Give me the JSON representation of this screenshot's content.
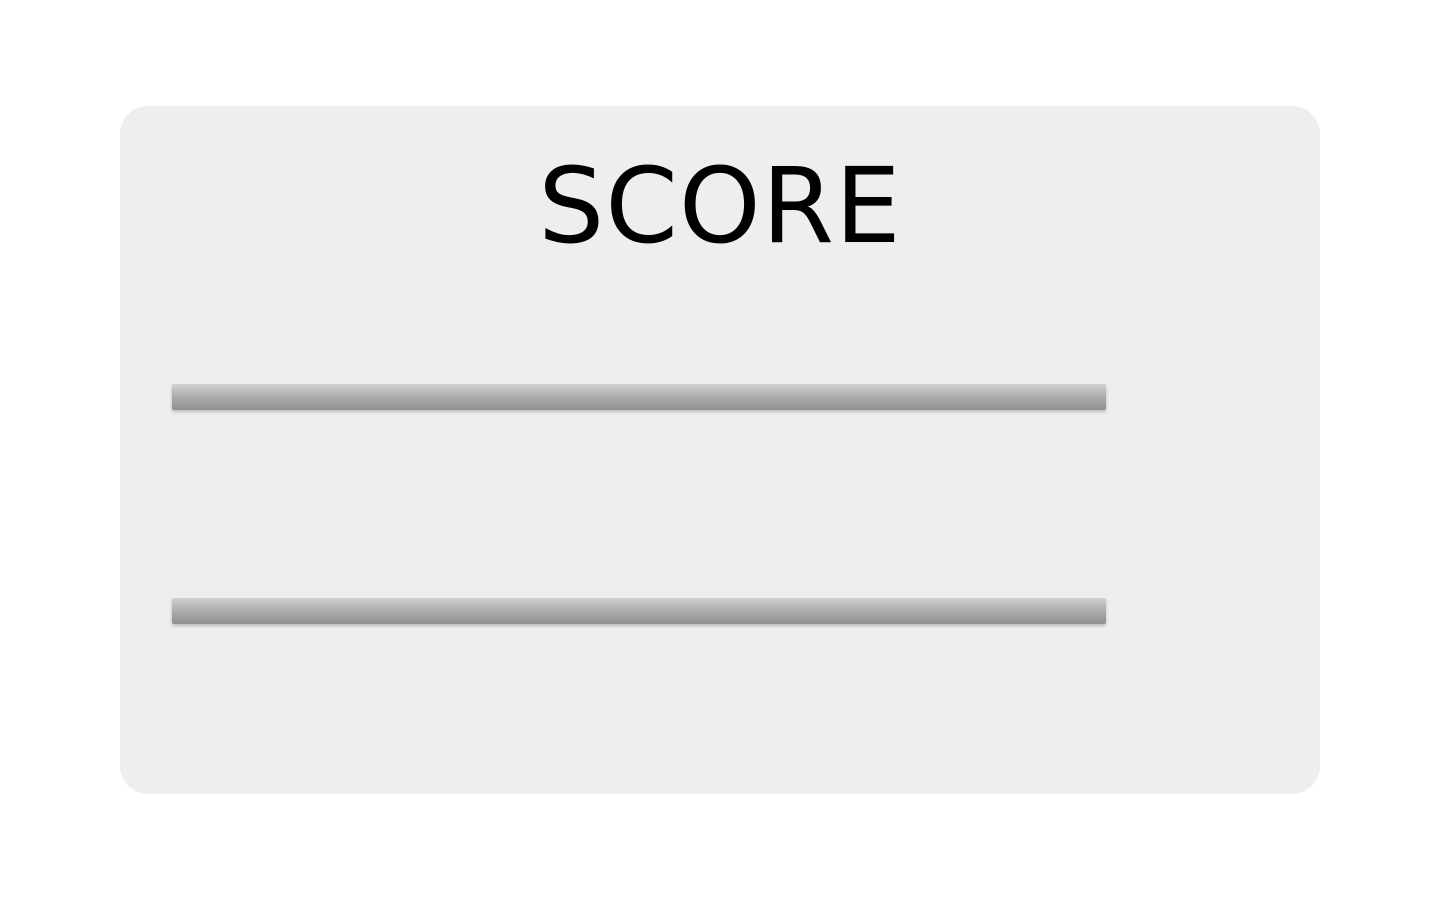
{
  "score_panel": {
    "title": "SCORE",
    "bars": [
      {
        "fill_fraction": 0
      },
      {
        "fill_fraction": 0
      }
    ]
  },
  "colors": {
    "page_background": "#ffffff",
    "panel_background": "#eeeeee",
    "bar_gray": "#aaaaaa",
    "title_text": "#000000"
  }
}
